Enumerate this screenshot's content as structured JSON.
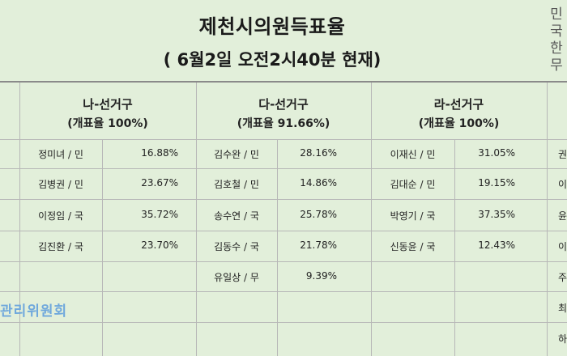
{
  "title": "제천시의원득표율",
  "subtitle": "( 6월2일 오전2시40분  현재)",
  "side_text": [
    "민",
    "국",
    "한",
    "무"
  ],
  "districts": [
    {
      "name": "나-선거구",
      "rate": "(개표율 100%)",
      "rows": [
        {
          "name": "정미녀 / 민",
          "pct": "16.88%"
        },
        {
          "name": "김병권 / 민",
          "pct": "23.67%"
        },
        {
          "name": "이정임 / 국",
          "pct": "35.72%"
        },
        {
          "name": "김진환 / 국",
          "pct": "23.70%"
        }
      ]
    },
    {
      "name": "다-선거구",
      "rate": "(개표율 91.66%)",
      "rows": [
        {
          "name": "김수완 / 민",
          "pct": "28.16%"
        },
        {
          "name": "김호철 / 민",
          "pct": "14.86%"
        },
        {
          "name": "송수연 / 국",
          "pct": "25.78%"
        },
        {
          "name": "김동수 / 국",
          "pct": "21.78%"
        },
        {
          "name": "유일상 / 무",
          "pct": "9.39%"
        }
      ]
    },
    {
      "name": "라-선거구",
      "rate": "(개표율 100%)",
      "rows": [
        {
          "name": "이재신 / 민",
          "pct": "31.05%"
        },
        {
          "name": "김대순 / 민",
          "pct": "19.15%"
        },
        {
          "name": "박영기 / 국",
          "pct": "37.35%"
        },
        {
          "name": "신동윤 / 국",
          "pct": "12.43%"
        }
      ]
    }
  ],
  "right_cut": [
    "권",
    "이",
    "윤",
    "이",
    "주",
    "최",
    "하"
  ],
  "org_text": "관리위원회"
}
